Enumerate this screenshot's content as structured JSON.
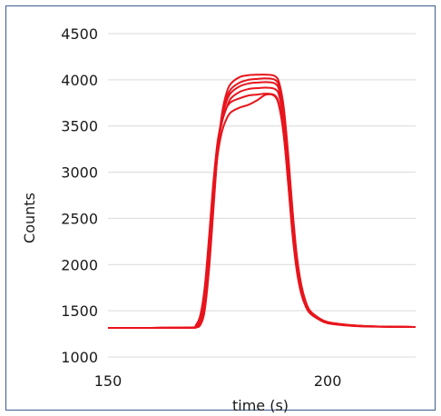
{
  "chart_data": {
    "type": "line",
    "title": "",
    "xlabel": "time (s)",
    "ylabel": "Counts",
    "xlim": [
      150,
      220
    ],
    "ylim": [
      1000,
      4500
    ],
    "x_ticks": [
      150,
      200
    ],
    "x_tick_labels": [
      "150",
      "200"
    ],
    "y_ticks": [
      1000,
      1500,
      2000,
      2500,
      3000,
      3500,
      4000,
      4500
    ],
    "y_tick_labels": [
      "1000",
      "1500",
      "2000",
      "2500",
      "3000",
      "3500",
      "4000",
      "4500"
    ],
    "grid": "horizontal",
    "legend": "none",
    "series_color": "#e8141c",
    "series": [
      {
        "x": [
          150,
          160,
          169,
          170,
          171,
          172,
          173,
          174,
          175,
          176,
          177,
          178,
          180,
          182,
          184,
          186,
          188,
          189,
          190,
          191,
          192,
          193,
          194,
          195,
          196,
          198,
          200,
          205,
          210,
          220
        ],
        "y": [
          1315,
          1315,
          1318,
          1330,
          1400,
          1650,
          2150,
          2750,
          3200,
          3450,
          3580,
          3650,
          3700,
          3730,
          3780,
          3840,
          3820,
          3700,
          3400,
          2900,
          2350,
          1950,
          1700,
          1560,
          1480,
          1410,
          1370,
          1340,
          1330,
          1325
        ]
      },
      {
        "x": [
          150,
          160,
          169,
          170,
          171,
          172,
          173,
          174,
          175,
          176,
          177,
          178,
          180,
          182,
          184,
          186,
          188,
          189,
          190,
          191,
          192,
          193,
          194,
          195,
          196,
          198,
          200,
          205,
          210,
          220
        ],
        "y": [
          1315,
          1315,
          1320,
          1345,
          1450,
          1750,
          2300,
          2900,
          3350,
          3580,
          3700,
          3760,
          3800,
          3830,
          3840,
          3850,
          3830,
          3720,
          3400,
          2880,
          2320,
          1920,
          1680,
          1545,
          1470,
          1405,
          1365,
          1338,
          1328,
          1325
        ]
      },
      {
        "x": [
          150,
          160,
          169,
          170,
          171,
          172,
          173,
          174,
          175,
          176,
          177,
          178,
          180,
          182,
          184,
          186,
          188,
          189,
          190,
          191,
          192,
          193,
          194,
          195,
          196,
          198,
          200,
          205,
          210,
          220
        ],
        "y": [
          1315,
          1315,
          1318,
          1330,
          1400,
          1650,
          2200,
          2800,
          3300,
          3550,
          3700,
          3800,
          3870,
          3900,
          3910,
          3915,
          3900,
          3820,
          3520,
          3000,
          2420,
          1990,
          1720,
          1570,
          1485,
          1415,
          1372,
          1342,
          1330,
          1325
        ]
      },
      {
        "x": [
          150,
          160,
          169,
          170,
          171,
          172,
          173,
          174,
          175,
          176,
          177,
          178,
          180,
          182,
          184,
          186,
          188,
          189,
          190,
          191,
          192,
          193,
          194,
          195,
          196,
          198,
          200,
          205,
          210,
          220
        ],
        "y": [
          1315,
          1315,
          1318,
          1325,
          1380,
          1600,
          2100,
          2750,
          3300,
          3600,
          3770,
          3860,
          3930,
          3960,
          3970,
          3975,
          3960,
          3880,
          3600,
          3080,
          2480,
          2020,
          1740,
          1580,
          1490,
          1418,
          1375,
          1344,
          1331,
          1325
        ]
      },
      {
        "x": [
          150,
          160,
          169,
          170,
          171,
          172,
          173,
          174,
          175,
          176,
          177,
          178,
          180,
          182,
          184,
          186,
          188,
          189,
          190,
          191,
          192,
          193,
          194,
          195,
          196,
          198,
          200,
          205,
          210,
          220
        ],
        "y": [
          1315,
          1315,
          1317,
          1322,
          1360,
          1550,
          2000,
          2650,
          3250,
          3600,
          3800,
          3900,
          3970,
          4000,
          4010,
          4015,
          4000,
          3920,
          3660,
          3150,
          2540,
          2060,
          1760,
          1590,
          1495,
          1420,
          1377,
          1345,
          1332,
          1325
        ]
      },
      {
        "x": [
          150,
          160,
          169,
          170,
          171,
          172,
          173,
          174,
          175,
          176,
          177,
          178,
          180,
          182,
          184,
          186,
          188,
          189,
          190,
          191,
          192,
          193,
          194,
          195,
          196,
          198,
          200,
          205,
          210,
          220
        ],
        "y": [
          1315,
          1315,
          1316,
          1320,
          1345,
          1500,
          1950,
          2600,
          3250,
          3650,
          3860,
          3960,
          4030,
          4050,
          4055,
          4055,
          4040,
          3960,
          3700,
          3200,
          2590,
          2090,
          1780,
          1600,
          1500,
          1422,
          1378,
          1346,
          1332,
          1325
        ]
      }
    ]
  }
}
